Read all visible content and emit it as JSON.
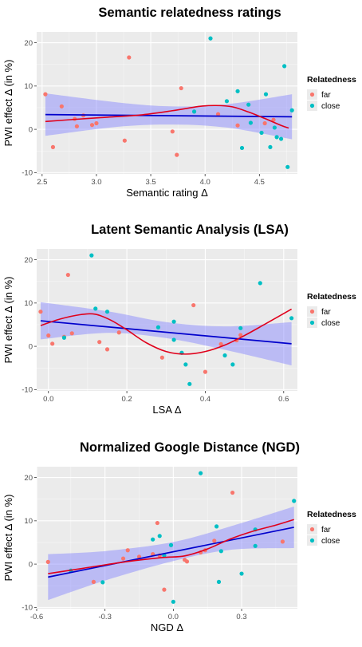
{
  "colors": {
    "far": "#F8766D",
    "close": "#00BFC4",
    "panel_bg": "#EBEBEB",
    "grid": "#FFFFFF",
    "ribbon": "#8080FF",
    "lm_line": "#0000CC",
    "loess_line": "#E0001B"
  },
  "legend": {
    "title": "Relatedness",
    "items": [
      {
        "label": "far",
        "key": "far"
      },
      {
        "label": "close",
        "key": "close"
      }
    ]
  },
  "chart_data": [
    {
      "type": "scatter",
      "title": "Semantic relatedness ratings",
      "xlabel": "Semantic rating Δ",
      "ylabel": "PWI effect Δ (in %)",
      "xlim": [
        2.45,
        4.85
      ],
      "ylim": [
        -10.3,
        22.5
      ],
      "xticks": [
        2.5,
        3.0,
        3.5,
        4.0,
        4.5
      ],
      "xtick_labels": [
        "2.5",
        "3.0",
        "3.5",
        "4.0",
        "4.5"
      ],
      "yticks": [
        -10,
        0,
        10,
        20
      ],
      "ytick_labels": [
        "-10",
        "0",
        "10",
        "20"
      ],
      "legend_position": "right",
      "series": [
        {
          "name": "far",
          "key": "far",
          "points": [
            [
              2.53,
              8.1
            ],
            [
              2.6,
              -4.1
            ],
            [
              2.68,
              5.3
            ],
            [
              2.8,
              2.4
            ],
            [
              2.82,
              0.7
            ],
            [
              2.88,
              3.2
            ],
            [
              2.96,
              1.0
            ],
            [
              3.0,
              1.4
            ],
            [
              3.26,
              -2.6
            ],
            [
              3.3,
              16.6
            ],
            [
              3.7,
              -0.5
            ],
            [
              3.74,
              -5.9
            ],
            [
              3.78,
              9.5
            ],
            [
              4.12,
              3.5
            ],
            [
              4.3,
              0.9
            ],
            [
              4.55,
              1.4
            ],
            [
              4.63,
              2.2
            ]
          ]
        },
        {
          "name": "close",
          "key": "close",
          "points": [
            [
              3.9,
              4.1
            ],
            [
              4.05,
              21.0
            ],
            [
              4.2,
              6.5
            ],
            [
              4.3,
              8.8
            ],
            [
              4.34,
              -4.3
            ],
            [
              4.4,
              5.7
            ],
            [
              4.42,
              1.5
            ],
            [
              4.52,
              -0.8
            ],
            [
              4.56,
              8.1
            ],
            [
              4.6,
              -4.1
            ],
            [
              4.64,
              0.4
            ],
            [
              4.66,
              -1.8
            ],
            [
              4.7,
              -2.2
            ],
            [
              4.73,
              14.6
            ],
            [
              4.76,
              -8.7
            ],
            [
              4.8,
              4.4
            ]
          ]
        }
      ],
      "fits": {
        "linear": [
          [
            2.53,
            3.4
          ],
          [
            4.8,
            2.9
          ]
        ],
        "linear_ci": [
          [
            2.53,
            -1.5,
            8.3
          ],
          [
            3.2,
            0.6,
            6.2
          ],
          [
            3.7,
            1.1,
            5.3
          ],
          [
            4.2,
            0.4,
            5.8
          ],
          [
            4.8,
            -2.3,
            8.1
          ]
        ],
        "loess": [
          [
            2.53,
            1.8
          ],
          [
            2.8,
            2.3
          ],
          [
            3.1,
            2.8
          ],
          [
            3.4,
            3.3
          ],
          [
            3.7,
            4.3
          ],
          [
            3.95,
            5.3
          ],
          [
            4.1,
            5.5
          ],
          [
            4.25,
            5.2
          ],
          [
            4.4,
            4.0
          ],
          [
            4.55,
            2.5
          ],
          [
            4.7,
            0.9
          ],
          [
            4.77,
            0.3
          ]
        ]
      }
    },
    {
      "type": "scatter",
      "title": "Latent Semantic Analysis (LSA)",
      "xlabel": "LSA Δ",
      "ylabel": "PWI effect Δ (in %)",
      "xlim": [
        -0.03,
        0.635
      ],
      "ylim": [
        -10.3,
        22.5
      ],
      "xticks": [
        0.0,
        0.2,
        0.4,
        0.6
      ],
      "xtick_labels": [
        "0.0",
        "0.2",
        "0.4",
        "0.6"
      ],
      "yticks": [
        -10,
        0,
        10,
        20
      ],
      "ytick_labels": [
        "-10",
        "0",
        "10",
        "20"
      ],
      "legend_position": "right",
      "series": [
        {
          "name": "far",
          "key": "far",
          "points": [
            [
              -0.02,
              8.0
            ],
            [
              0.0,
              2.5
            ],
            [
              0.01,
              0.6
            ],
            [
              0.04,
              2.2
            ],
            [
              0.05,
              16.5
            ],
            [
              0.06,
              3.0
            ],
            [
              0.13,
              1.0
            ],
            [
              0.15,
              -0.7
            ],
            [
              0.18,
              3.2
            ],
            [
              0.29,
              -2.6
            ],
            [
              0.37,
              9.5
            ],
            [
              0.4,
              -5.9
            ],
            [
              0.44,
              0.5
            ],
            [
              0.48,
              1.4
            ],
            [
              0.49,
              2.6
            ]
          ]
        },
        {
          "name": "close",
          "key": "close",
          "points": [
            [
              0.04,
              2.0
            ],
            [
              0.11,
              21.0
            ],
            [
              0.12,
              8.7
            ],
            [
              0.15,
              8.0
            ],
            [
              0.28,
              4.4
            ],
            [
              0.32,
              5.7
            ],
            [
              0.32,
              1.5
            ],
            [
              0.34,
              -1.5
            ],
            [
              0.35,
              -4.2
            ],
            [
              0.36,
              -8.7
            ],
            [
              0.45,
              -2.1
            ],
            [
              0.47,
              -4.2
            ],
            [
              0.49,
              4.2
            ],
            [
              0.54,
              14.6
            ],
            [
              0.62,
              6.5
            ]
          ]
        }
      ],
      "fits": {
        "linear": [
          [
            -0.02,
            5.9
          ],
          [
            0.62,
            0.6
          ]
        ],
        "linear_ci": [
          [
            -0.02,
            1.6,
            10.2
          ],
          [
            0.15,
            3.1,
            8.1
          ],
          [
            0.3,
            1.9,
            5.6
          ],
          [
            0.45,
            -0.8,
            4.6
          ],
          [
            0.62,
            -4.4,
            5.6
          ]
        ],
        "loess": [
          [
            -0.02,
            4.8
          ],
          [
            0.03,
            6.3
          ],
          [
            0.08,
            7.3
          ],
          [
            0.12,
            7.4
          ],
          [
            0.16,
            6.0
          ],
          [
            0.2,
            3.8
          ],
          [
            0.25,
            0.8
          ],
          [
            0.3,
            -1.2
          ],
          [
            0.35,
            -1.8
          ],
          [
            0.4,
            -1.2
          ],
          [
            0.45,
            0.3
          ],
          [
            0.5,
            2.5
          ],
          [
            0.55,
            5.0
          ],
          [
            0.62,
            8.6
          ]
        ]
      }
    },
    {
      "type": "scatter",
      "title": "Normalized Google Distance (NGD)",
      "xlabel": "NGD Δ",
      "ylabel": "PWI effect Δ (in %)",
      "xlim": [
        -0.6,
        0.545
      ],
      "ylim": [
        -10.3,
        22.5
      ],
      "xticks": [
        -0.6,
        -0.3,
        0.0,
        0.3
      ],
      "xtick_labels": [
        "-0.6",
        "-0.3",
        "0.0",
        "0.3"
      ],
      "yticks": [
        -10,
        0,
        10,
        20
      ],
      "ytick_labels": [
        "-10",
        "0",
        "10",
        "20"
      ],
      "legend_position": "right",
      "series": [
        {
          "name": "far",
          "key": "far",
          "points": [
            [
              -0.55,
              0.5
            ],
            [
              -0.35,
              -4.1
            ],
            [
              -0.22,
              1.3
            ],
            [
              -0.2,
              3.2
            ],
            [
              -0.15,
              1.7
            ],
            [
              -0.09,
              2.3
            ],
            [
              -0.07,
              9.5
            ],
            [
              -0.06,
              2.0
            ],
            [
              -0.04,
              -5.9
            ],
            [
              0.05,
              1.0
            ],
            [
              0.06,
              0.6
            ],
            [
              0.12,
              2.7
            ],
            [
              0.14,
              3.2
            ],
            [
              0.18,
              5.4
            ],
            [
              0.26,
              16.5
            ],
            [
              0.48,
              5.2
            ]
          ]
        },
        {
          "name": "close",
          "key": "close",
          "points": [
            [
              -0.45,
              -1.5
            ],
            [
              -0.31,
              -4.2
            ],
            [
              -0.09,
              5.7
            ],
            [
              -0.06,
              6.5
            ],
            [
              -0.04,
              2.0
            ],
            [
              -0.01,
              4.4
            ],
            [
              0.0,
              -8.7
            ],
            [
              0.12,
              21.0
            ],
            [
              0.19,
              8.7
            ],
            [
              0.2,
              -4.1
            ],
            [
              0.21,
              3.0
            ],
            [
              0.3,
              -2.2
            ],
            [
              0.36,
              8.0
            ],
            [
              0.36,
              4.2
            ],
            [
              0.53,
              14.6
            ]
          ]
        }
      ],
      "fits": {
        "linear": [
          [
            -0.55,
            -3.0
          ],
          [
            0.53,
            8.5
          ]
        ],
        "linear_ci": [
          [
            -0.55,
            -8.3,
            2.3
          ],
          [
            -0.3,
            -3.8,
            3.0
          ],
          [
            0.0,
            0.7,
            5.1
          ],
          [
            0.25,
            3.3,
            8.7
          ],
          [
            0.53,
            3.7,
            13.3
          ]
        ],
        "loess": [
          [
            -0.55,
            -2.2
          ],
          [
            -0.4,
            -1.0
          ],
          [
            -0.2,
            0.6
          ],
          [
            -0.05,
            1.5
          ],
          [
            0.05,
            1.9
          ],
          [
            0.15,
            3.5
          ],
          [
            0.25,
            5.8
          ],
          [
            0.35,
            7.6
          ],
          [
            0.45,
            9.0
          ],
          [
            0.53,
            10.3
          ]
        ]
      }
    }
  ]
}
